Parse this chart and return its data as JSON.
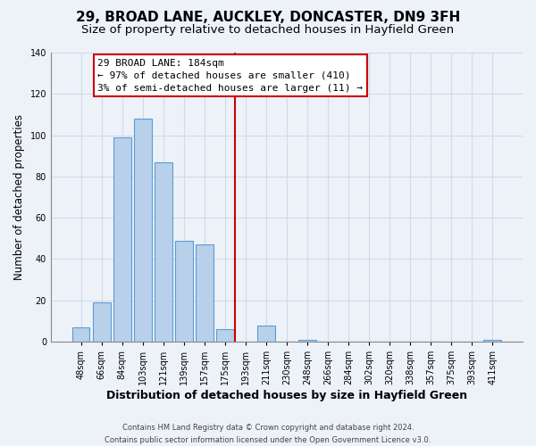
{
  "title": "29, BROAD LANE, AUCKLEY, DONCASTER, DN9 3FH",
  "subtitle": "Size of property relative to detached houses in Hayfield Green",
  "xlabel": "Distribution of detached houses by size in Hayfield Green",
  "ylabel": "Number of detached properties",
  "bar_labels": [
    "48sqm",
    "66sqm",
    "84sqm",
    "103sqm",
    "121sqm",
    "139sqm",
    "157sqm",
    "175sqm",
    "193sqm",
    "211sqm",
    "230sqm",
    "248sqm",
    "266sqm",
    "284sqm",
    "302sqm",
    "320sqm",
    "338sqm",
    "357sqm",
    "375sqm",
    "393sqm",
    "411sqm"
  ],
  "bar_heights": [
    7,
    19,
    99,
    108,
    87,
    49,
    47,
    6,
    0,
    8,
    0,
    1,
    0,
    0,
    0,
    0,
    0,
    0,
    0,
    0,
    1
  ],
  "bar_color": "#b8d0ea",
  "bar_edge_color": "#5b9bd5",
  "vline_color": "#cc0000",
  "annotation_text_line1": "29 BROAD LANE: 184sqm",
  "annotation_text_line2": "← 97% of detached houses are smaller (410)",
  "annotation_text_line3": "3% of semi-detached houses are larger (11) →",
  "box_edge_color": "#cc0000",
  "ylim": [
    0,
    140
  ],
  "footer_line1": "Contains HM Land Registry data © Crown copyright and database right 2024.",
  "footer_line2": "Contains public sector information licensed under the Open Government Licence v3.0.",
  "background_color": "#edf2f9",
  "grid_color": "#d0daea",
  "title_fontsize": 11,
  "subtitle_fontsize": 9.5,
  "xlabel_fontsize": 9,
  "ylabel_fontsize": 8.5,
  "tick_fontsize": 7,
  "annotation_fontsize": 8,
  "footer_fontsize": 6
}
